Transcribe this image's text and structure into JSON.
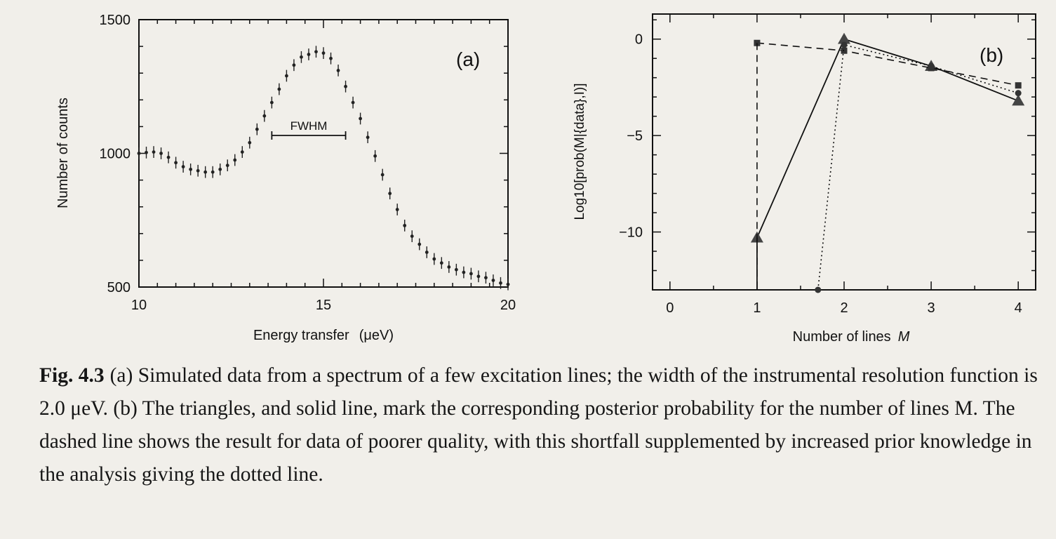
{
  "chart_data": [
    {
      "type": "scatter",
      "panel_label": "(a)",
      "xlabel": "Energy transfer",
      "xlabel_unit": "(μeV)",
      "ylabel": "Number of counts",
      "xlim": [
        10,
        20
      ],
      "ylim": [
        500,
        1500
      ],
      "xticks": [
        "10",
        "15",
        "20"
      ],
      "yticks": [
        "500",
        "1000",
        "1500"
      ],
      "annotation": "FWHM",
      "fwhm_range": [
        13.6,
        15.6
      ],
      "error_bar": 22,
      "series": [
        {
          "x": [
            10.0,
            10.2,
            10.4,
            10.6,
            10.8,
            11.0,
            11.2,
            11.4,
            11.6,
            11.8,
            12.0,
            12.2,
            12.4,
            12.6,
            12.8,
            13.0,
            13.2,
            13.4,
            13.6,
            13.8,
            14.0,
            14.2,
            14.4,
            14.6,
            14.8,
            15.0,
            15.2,
            15.4,
            15.6,
            15.8,
            16.0,
            16.2,
            16.4,
            16.6,
            16.8,
            17.0,
            17.2,
            17.4,
            17.6,
            17.8,
            18.0,
            18.2,
            18.4,
            18.6,
            18.8,
            19.0,
            19.2,
            19.4,
            19.6,
            19.8,
            20.0
          ],
          "y": [
            1000,
            1003,
            1005,
            1000,
            985,
            965,
            950,
            940,
            935,
            930,
            930,
            940,
            955,
            975,
            1005,
            1040,
            1090,
            1140,
            1190,
            1240,
            1290,
            1330,
            1360,
            1370,
            1380,
            1375,
            1355,
            1310,
            1250,
            1190,
            1130,
            1060,
            990,
            920,
            850,
            790,
            730,
            690,
            660,
            630,
            605,
            590,
            575,
            565,
            555,
            550,
            540,
            535,
            525,
            515,
            510
          ]
        }
      ]
    },
    {
      "type": "line",
      "panel_label": "(b)",
      "xlabel": "Number of lines",
      "xlabel_symbol": "M",
      "ylabel": "Log10[prob(M|{data},I)]",
      "xlim": [
        -0.2,
        4.2
      ],
      "ylim": [
        -13,
        1.3
      ],
      "xticks": [
        "0",
        "1",
        "2",
        "3",
        "4"
      ],
      "yticks": [
        "0",
        "−5",
        "−10"
      ],
      "series": [
        {
          "style": "solid",
          "marker": "triangle",
          "x": [
            1,
            2,
            3,
            4
          ],
          "y": [
            -10.3,
            0.0,
            -1.4,
            -3.2
          ]
        },
        {
          "style": "dashed",
          "marker": "square",
          "x": [
            1,
            2,
            3,
            4
          ],
          "y": [
            -0.2,
            -0.6,
            -1.5,
            -2.4
          ]
        },
        {
          "style": "dotted",
          "marker": "circle",
          "x": [
            1.7,
            2,
            3,
            4
          ],
          "y": [
            -13.0,
            -0.3,
            -1.4,
            -2.8
          ]
        }
      ]
    }
  ],
  "caption": {
    "label": "Fig. 4.3",
    "text": "(a) Simulated data from a spectrum of a few excitation lines; the width of the instrumental resolution function is 2.0 μeV. (b) The triangles, and solid line, mark the corresponding posterior probability for the number of lines M. The dashed line shows the result for data of poorer quality, with this shortfall supplemented by increased prior knowledge in the analysis giving the dotted line."
  }
}
